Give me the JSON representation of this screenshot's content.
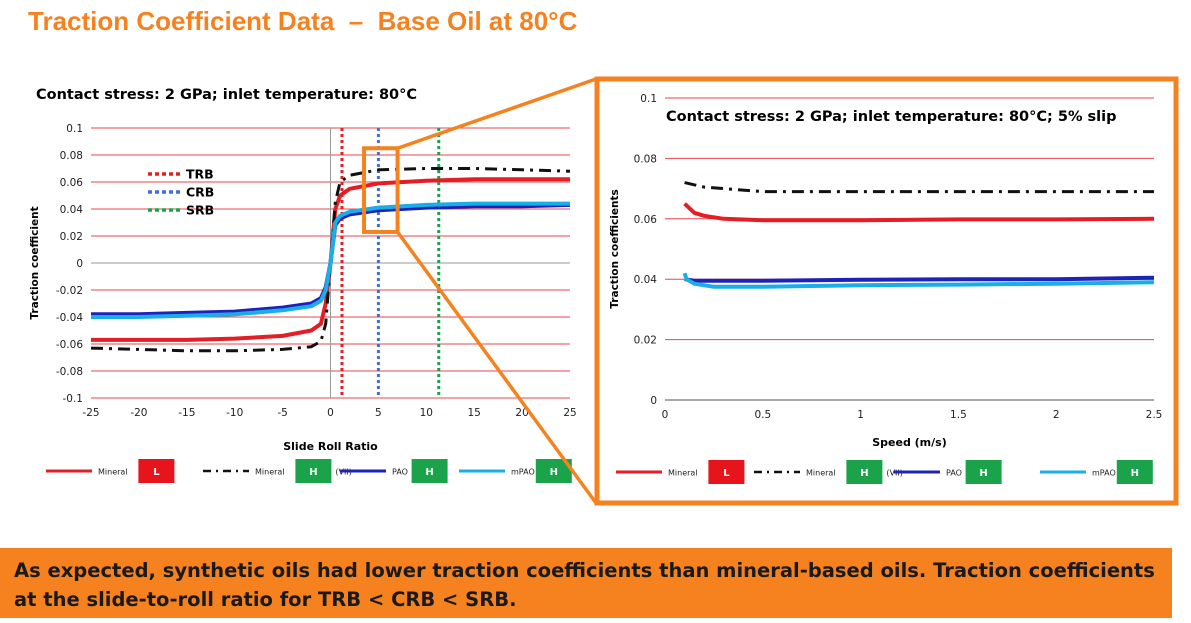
{
  "page": {
    "title": "Traction Coefficient Data  –  Base Oil at 80°C",
    "note": "As expected, synthetic oils had lower traction coefficients than mineral-based oils. Traction coefficients at the slide-to-roll ratio for TRB < CRB < SRB.",
    "accent_color": "#f5821f"
  },
  "chart_data": [
    {
      "type": "line",
      "title": "Contact stress: 2 GPa; inlet temperature: 80°C",
      "xlabel": "Slide Roll Ratio",
      "ylabel": "Traction coefficient",
      "xlim": [
        -25,
        25
      ],
      "ylim": [
        -0.1,
        0.1
      ],
      "xticks": [
        "-25",
        "-20",
        "-15",
        "-10",
        "-5",
        "0",
        "5",
        "10",
        "15",
        "20",
        "25"
      ],
      "yticks": [
        "0.1",
        "0.08",
        "0.06",
        "0.04",
        "0.02",
        "0",
        "-0.02",
        "-0.04",
        "-0.06",
        "-0.08",
        "-0.1"
      ],
      "grid": true,
      "legend_position": "bottom",
      "series": [
        {
          "name": "Mineral",
          "badge": "L",
          "badge_color": "#e8141c",
          "color": "#e31e24",
          "style": "solid",
          "x": [
            -25,
            -20,
            -15,
            -10,
            -5,
            -2,
            -1,
            -0.5,
            0,
            0.5,
            1,
            2,
            5,
            10,
            15,
            20,
            25
          ],
          "y": [
            -0.057,
            -0.057,
            -0.057,
            -0.056,
            -0.054,
            -0.05,
            -0.045,
            -0.03,
            0.0,
            0.04,
            0.05,
            0.055,
            0.059,
            0.061,
            0.062,
            0.062,
            0.062
          ]
        },
        {
          "name": "Mineral",
          "badge": "H",
          "badge_color": "#1aa34a",
          "extra": "(VII)",
          "color": "#111111",
          "style": "dashdot",
          "x": [
            -25,
            -20,
            -15,
            -10,
            -5,
            -2,
            -1,
            -0.5,
            0,
            0.5,
            1,
            2,
            5,
            10,
            15,
            20,
            25
          ],
          "y": [
            -0.063,
            -0.064,
            -0.065,
            -0.065,
            -0.064,
            -0.062,
            -0.058,
            -0.045,
            0.0,
            0.045,
            0.06,
            0.065,
            0.069,
            0.07,
            0.07,
            0.069,
            0.068
          ]
        },
        {
          "name": "PAO",
          "badge": "H",
          "badge_color": "#1aa34a",
          "color": "#1e22b8",
          "style": "solid",
          "x": [
            -25,
            -20,
            -15,
            -10,
            -5,
            -2,
            -1,
            -0.5,
            0,
            0.5,
            1,
            2,
            5,
            10,
            15,
            20,
            25
          ],
          "y": [
            -0.038,
            -0.038,
            -0.037,
            -0.036,
            -0.033,
            -0.03,
            -0.026,
            -0.018,
            0.0,
            0.028,
            0.033,
            0.036,
            0.039,
            0.041,
            0.042,
            0.042,
            0.043
          ]
        },
        {
          "name": "mPAO",
          "badge": "H",
          "badge_color": "#1aa34a",
          "color": "#1aaee8",
          "style": "solid",
          "x": [
            -25,
            -20,
            -15,
            -10,
            -5,
            -2,
            -1,
            -0.5,
            0,
            0.5,
            1,
            2,
            5,
            10,
            15,
            20,
            25
          ],
          "y": [
            -0.04,
            -0.04,
            -0.039,
            -0.038,
            -0.035,
            -0.032,
            -0.028,
            -0.02,
            0.0,
            0.03,
            0.035,
            0.038,
            0.041,
            0.043,
            0.044,
            0.044,
            0.044
          ]
        }
      ],
      "vlines": [
        {
          "name": "TRB",
          "x": 1.2,
          "color": "#e31e24"
        },
        {
          "name": "CRB",
          "x": 5,
          "color": "#3b6fe0"
        },
        {
          "name": "SRB",
          "x": 11.3,
          "color": "#1aa34a"
        }
      ],
      "zoom_region": {
        "xlim": [
          3.5,
          7
        ],
        "ylim": [
          0.023,
          0.085
        ]
      }
    },
    {
      "type": "line",
      "title": "Contact stress: 2 GPa; inlet temperature: 80°C; 5% slip",
      "xlabel": "Speed (m/s)",
      "ylabel": "Traction coefficients",
      "xlim": [
        0,
        2.5
      ],
      "ylim": [
        0,
        0.1
      ],
      "xticks": [
        "0",
        "0.5",
        "1",
        "1.5",
        "2",
        "2.5"
      ],
      "yticks": [
        "0.1",
        "0.08",
        "0.06",
        "0.04",
        "0.02",
        "0"
      ],
      "grid": true,
      "legend_position": "bottom",
      "series": [
        {
          "name": "Mineral",
          "badge": "L",
          "badge_color": "#e8141c",
          "color": "#e31e24",
          "style": "solid",
          "x": [
            0.1,
            0.15,
            0.2,
            0.3,
            0.5,
            1.0,
            1.5,
            2.0,
            2.5
          ],
          "y": [
            0.065,
            0.062,
            0.061,
            0.06,
            0.0595,
            0.0595,
            0.0598,
            0.0598,
            0.06
          ]
        },
        {
          "name": "Mineral",
          "badge": "H",
          "badge_color": "#1aa34a",
          "extra": "(VII)",
          "color": "#111111",
          "style": "dashdot",
          "x": [
            0.1,
            0.2,
            0.3,
            0.5,
            1.0,
            1.5,
            2.0,
            2.5
          ],
          "y": [
            0.072,
            0.0705,
            0.07,
            0.069,
            0.069,
            0.069,
            0.069,
            0.069
          ]
        },
        {
          "name": "PAO",
          "badge": "H",
          "badge_color": "#1aa34a",
          "color": "#1e22b8",
          "style": "solid",
          "x": [
            0.1,
            0.15,
            0.3,
            0.5,
            1.0,
            1.5,
            2.0,
            2.5
          ],
          "y": [
            0.04,
            0.0395,
            0.0395,
            0.0395,
            0.0398,
            0.04,
            0.04,
            0.0405
          ]
        },
        {
          "name": "mPAO",
          "badge": "H",
          "badge_color": "#1aa34a",
          "color": "#1aaee8",
          "style": "solid",
          "x": [
            0.1,
            0.11,
            0.15,
            0.25,
            0.5,
            1.0,
            1.5,
            2.0,
            2.5
          ],
          "y": [
            0.042,
            0.04,
            0.0385,
            0.0375,
            0.0375,
            0.038,
            0.0382,
            0.0385,
            0.039
          ]
        }
      ]
    }
  ]
}
